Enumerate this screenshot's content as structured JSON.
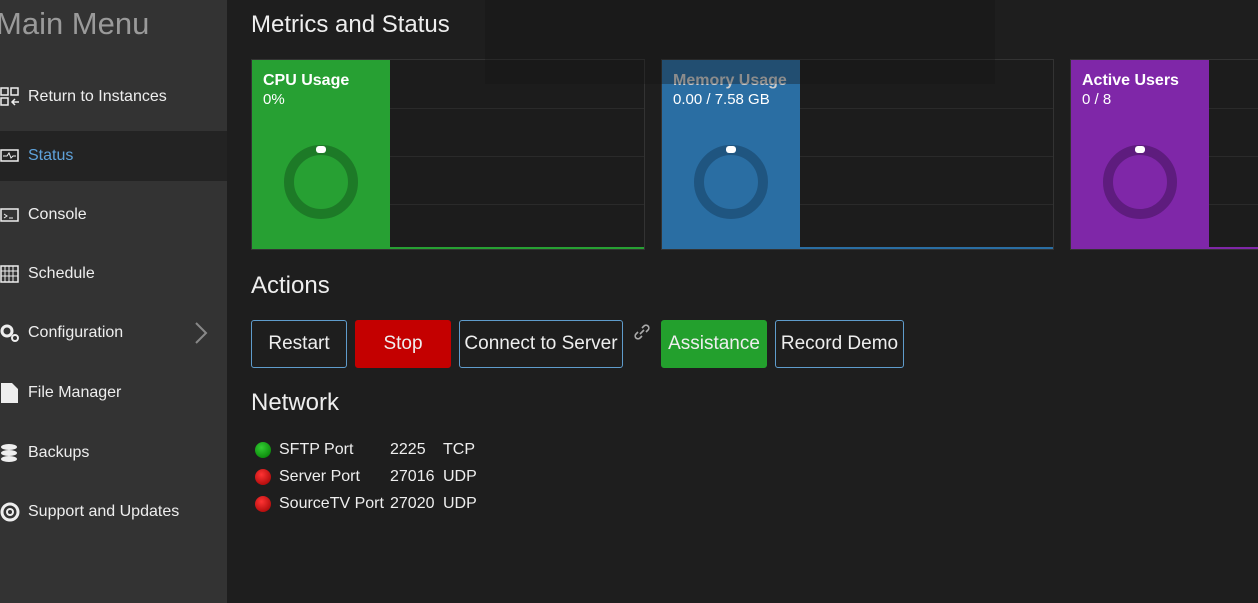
{
  "sidebar": {
    "title": "Main Menu",
    "items": [
      "Return to Instances",
      "Status",
      "Console",
      "Schedule",
      "Configuration",
      "File Manager",
      "Backups",
      "Support and Updates"
    ]
  },
  "metrics": {
    "title": "Metrics and Status",
    "cards": [
      {
        "label": "CPU Usage",
        "value": "0%"
      },
      {
        "label": "Memory Usage",
        "value": "0.00 / 7.58 GB"
      },
      {
        "label": "Active Users",
        "value": "0 / 8"
      }
    ]
  },
  "actions": {
    "title": "Actions",
    "buttons": [
      "Restart",
      "Stop",
      "Connect to Server",
      "Assistance",
      "Record Demo"
    ]
  },
  "network": {
    "title": "Network",
    "ports": [
      {
        "name": "SFTP Port",
        "port": 2225,
        "protocol": "TCP"
      },
      {
        "name": "Server Port",
        "port": 27016,
        "protocol": "UDP"
      },
      {
        "name": "SourceTV Port",
        "port": 27020,
        "protocol": "UDP"
      }
    ]
  }
}
